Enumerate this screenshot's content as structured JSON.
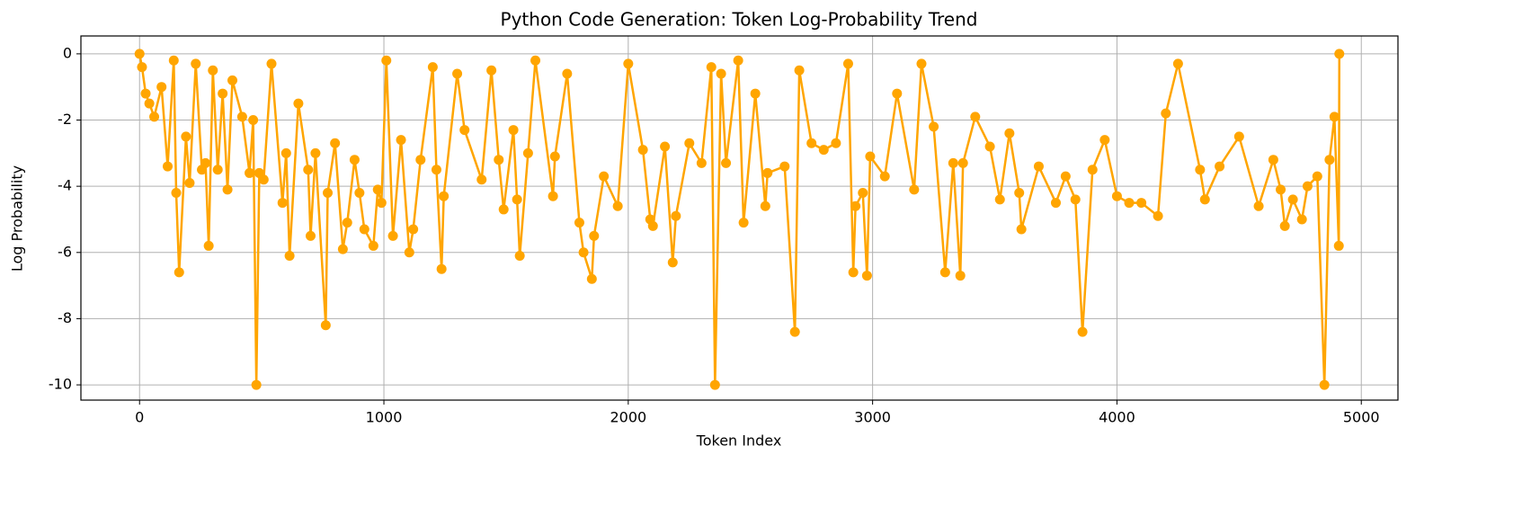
{
  "chart_data": {
    "type": "line",
    "title": "Python Code Generation: Token Log-Probability Trend",
    "x_label": "Token Index",
    "y_label": "Log Probability",
    "xlim": [
      -240,
      5150
    ],
    "ylim": [
      -10.46,
      0.54
    ],
    "xticks": [
      0,
      1000,
      2000,
      3000,
      4000,
      5000
    ],
    "yticks": [
      0,
      -2,
      -4,
      -6,
      -8,
      -10
    ],
    "grid": true,
    "series": [
      {
        "color": "#ffa500",
        "x": [
          0,
          10,
          25,
          40,
          60,
          90,
          115,
          140,
          150,
          162,
          190,
          205,
          230,
          255,
          270,
          283,
          300,
          320,
          340,
          360,
          380,
          420,
          450,
          465,
          478,
          490,
          508,
          540,
          585,
          600,
          614,
          650,
          690,
          700,
          720,
          762,
          770,
          800,
          832,
          850,
          880,
          900,
          920,
          957,
          975,
          990,
          1010,
          1037,
          1070,
          1104,
          1120,
          1150,
          1200,
          1215,
          1236,
          1245,
          1300,
          1330,
          1400,
          1440,
          1470,
          1490,
          1530,
          1545,
          1556,
          1590,
          1620,
          1692,
          1700,
          1750,
          1800,
          1817,
          1851,
          1860,
          1900,
          1957,
          2000,
          2060,
          2090,
          2101,
          2150,
          2182,
          2195,
          2250,
          2300,
          2340,
          2355,
          2380,
          2400,
          2450,
          2472,
          2520,
          2561,
          2570,
          2640,
          2682,
          2700,
          2750,
          2800,
          2850,
          2900,
          2921,
          2930,
          2960,
          2977,
          2990,
          3050,
          3100,
          3170,
          3200,
          3250,
          3297,
          3330,
          3359,
          3370,
          3420,
          3480,
          3521,
          3560,
          3600,
          3609,
          3680,
          3750,
          3790,
          3830,
          3859,
          3900,
          3950,
          4000,
          4050,
          4100,
          4168,
          4200,
          4250,
          4340,
          4360,
          4420,
          4500,
          4580,
          4640,
          4670,
          4687,
          4720,
          4757,
          4780,
          4820,
          4849,
          4870,
          4890,
          4908,
          4910
        ],
        "values": [
          0,
          -0.4,
          -1.2,
          -1.5,
          -1.9,
          -1.0,
          -3.4,
          -0.2,
          -4.2,
          -6.6,
          -2.5,
          -3.9,
          -0.3,
          -3.5,
          -3.3,
          -5.8,
          -0.5,
          -3.5,
          -1.2,
          -4.1,
          -0.8,
          -1.9,
          -3.6,
          -2.0,
          -10.0,
          -3.6,
          -3.8,
          -0.3,
          -4.5,
          -3.0,
          -6.1,
          -1.5,
          -3.5,
          -5.5,
          -3.0,
          -8.2,
          -4.2,
          -2.7,
          -5.9,
          -5.1,
          -3.2,
          -4.2,
          -5.3,
          -5.8,
          -4.1,
          -4.5,
          -0.2,
          -5.5,
          -2.6,
          -6.0,
          -5.3,
          -3.2,
          -0.4,
          -3.5,
          -6.5,
          -4.3,
          -0.6,
          -2.3,
          -3.8,
          -0.5,
          -3.2,
          -4.7,
          -2.3,
          -4.4,
          -6.1,
          -3.0,
          -0.2,
          -4.3,
          -3.1,
          -0.6,
          -5.1,
          -6.0,
          -6.8,
          -5.5,
          -3.7,
          -4.6,
          -0.3,
          -2.9,
          -5.0,
          -5.2,
          -2.8,
          -6.3,
          -4.9,
          -2.7,
          -3.3,
          -0.4,
          -10.0,
          -0.6,
          -3.3,
          -0.2,
          -5.1,
          -1.2,
          -4.6,
          -3.6,
          -3.4,
          -8.4,
          -0.5,
          -2.7,
          -2.9,
          -2.7,
          -0.3,
          -6.6,
          -4.6,
          -4.2,
          -6.7,
          -3.1,
          -3.7,
          -1.2,
          -4.1,
          -0.3,
          -2.2,
          -6.6,
          -3.3,
          -6.7,
          -3.3,
          -1.9,
          -2.8,
          -4.4,
          -2.4,
          -4.2,
          -5.3,
          -3.4,
          -4.5,
          -3.7,
          -4.4,
          -8.4,
          -3.5,
          -2.6,
          -4.3,
          -4.5,
          -4.5,
          -4.9,
          -1.8,
          -0.3,
          -3.5,
          -4.4,
          -3.4,
          -2.5,
          -4.6,
          -3.2,
          -4.1,
          -5.2,
          -4.4,
          -5.0,
          -4.0,
          -3.7,
          -10.0,
          -3.2,
          -1.9,
          -5.8,
          0
        ]
      }
    ]
  }
}
